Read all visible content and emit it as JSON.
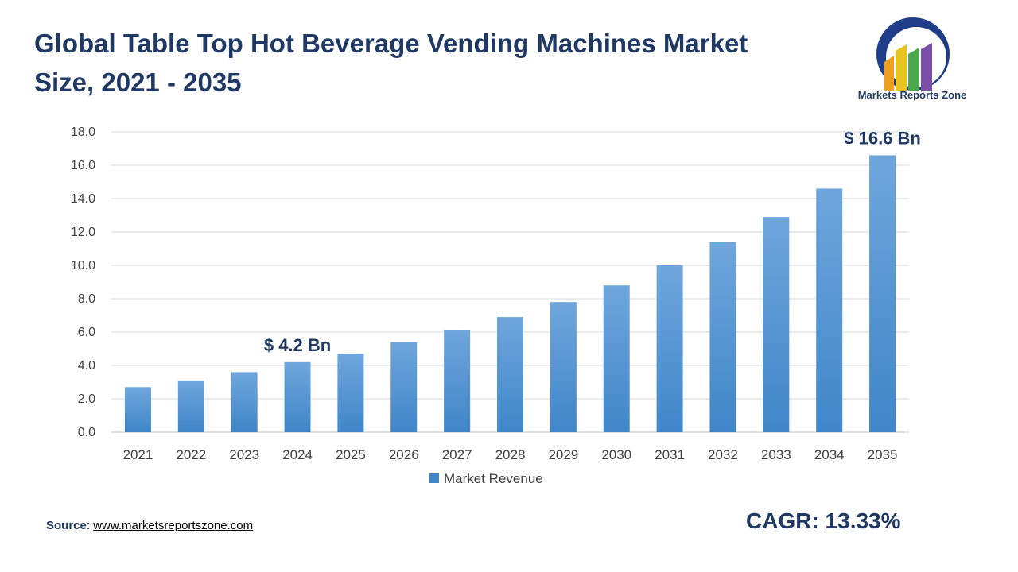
{
  "title": "Global Table Top Hot Beverage Vending Machines Market Size, 2021 - 2035",
  "logo": {
    "text": "Markets Reports Zone"
  },
  "source": {
    "label": "Source",
    "sep": ":",
    "url_text": "www.marketsreportszone.com"
  },
  "cagr": "CAGR: 13.33%",
  "colors": {
    "bar_top": "#6fa6dc",
    "bar_bottom": "#3f86c9",
    "title": "#1f3864",
    "grid": "#d9d9d9"
  },
  "chart_data": {
    "type": "bar",
    "categories": [
      "2021",
      "2022",
      "2023",
      "2024",
      "2025",
      "2026",
      "2027",
      "2028",
      "2029",
      "2030",
      "2031",
      "2032",
      "2033",
      "2034",
      "2035"
    ],
    "series": [
      {
        "name": "Market Revenue",
        "values": [
          2.7,
          3.1,
          3.6,
          4.2,
          4.7,
          5.4,
          6.1,
          6.9,
          7.8,
          8.8,
          10.0,
          11.4,
          12.9,
          14.6,
          16.6
        ]
      }
    ],
    "annotations": [
      {
        "category": "2024",
        "text": "$ 4.2 Bn"
      },
      {
        "category": "2035",
        "text": "$ 16.6 Bn"
      }
    ],
    "yticks": [
      "0.0",
      "2.0",
      "4.0",
      "6.0",
      "8.0",
      "10.0",
      "12.0",
      "14.0",
      "16.0",
      "18.0"
    ],
    "ylim": [
      0,
      18
    ],
    "grid": true,
    "legend": "bottom"
  }
}
